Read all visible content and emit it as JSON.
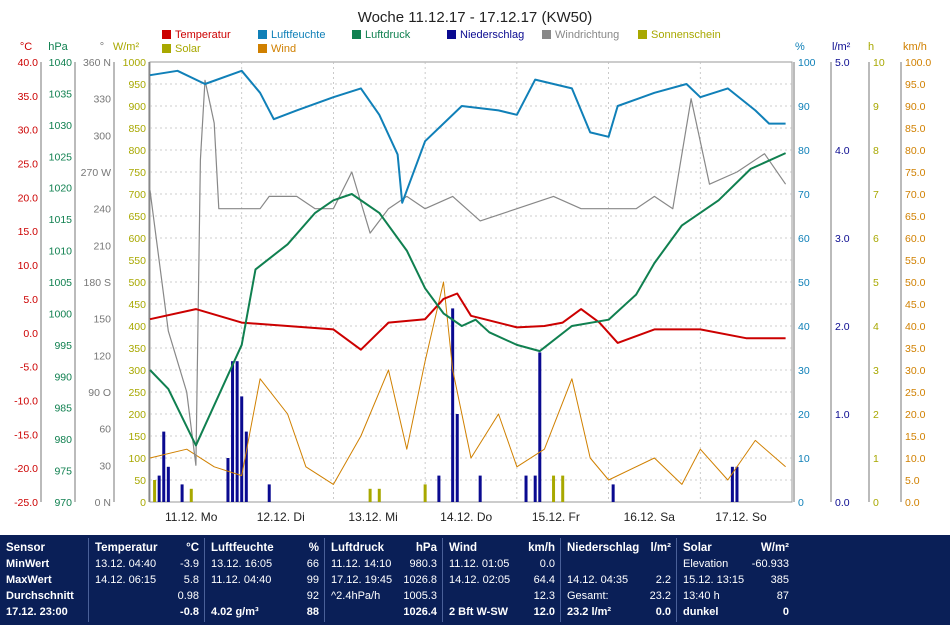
{
  "title": "Woche 11.12.17 - 17.12.17 (KW50)",
  "legend": [
    {
      "label": "Temperatur",
      "color": "#cc0000"
    },
    {
      "label": "Luftfeuchte",
      "color": "#1080b8"
    },
    {
      "label": "Luftdruck",
      "color": "#108050"
    },
    {
      "label": "Niederschlag",
      "color": "#0a0a90"
    },
    {
      "label": "Windrichtung",
      "color": "#888888"
    },
    {
      "label": "Sonnenschein",
      "color": "#a8a800"
    },
    {
      "label": "Solar",
      "color": "#a8a800"
    },
    {
      "label": "Wind",
      "color": "#d08000"
    }
  ],
  "axes": {
    "temp": {
      "unit": "°C",
      "color": "#cc0000",
      "ticks": [
        "40.0",
        "35.0",
        "30.0",
        "25.0",
        "20.0",
        "15.0",
        "10.0",
        "5.0",
        "0.0",
        "-5.0",
        "-10.0",
        "-15.0",
        "-20.0",
        "-25.0"
      ]
    },
    "press": {
      "unit": "hPa",
      "color": "#108050",
      "ticks": [
        "1040",
        "1035",
        "1030",
        "1025",
        "1020",
        "1015",
        "1010",
        "1005",
        "1000",
        "995",
        "990",
        "985",
        "980",
        "975",
        "970"
      ]
    },
    "dir": {
      "unit": "°",
      "color": "#777777",
      "ticks": [
        "360 N",
        "330",
        "300",
        "270 W",
        "240",
        "210",
        "180 S",
        "150",
        "120",
        "90 O",
        "60",
        "30",
        "0 N"
      ]
    },
    "solar": {
      "unit": "W/m²",
      "color": "#a8a800",
      "ticks": [
        "1000",
        "950",
        "900",
        "850",
        "800",
        "750",
        "700",
        "650",
        "600",
        "550",
        "500",
        "450",
        "400",
        "350",
        "300",
        "250",
        "200",
        "150",
        "100",
        "50",
        "0"
      ]
    },
    "hum": {
      "unit": "%",
      "color": "#1080b8",
      "ticks": [
        "100",
        "90",
        "80",
        "70",
        "60",
        "50",
        "40",
        "30",
        "20",
        "10",
        "0"
      ]
    },
    "rain": {
      "unit": "l/m²",
      "color": "#0a0a90",
      "ticks": [
        "5.0",
        "4.0",
        "3.0",
        "2.0",
        "1.0",
        "0.0"
      ]
    },
    "sun": {
      "unit": "h",
      "color": "#a8a800",
      "ticks": [
        "10",
        "9",
        "8",
        "7",
        "6",
        "5",
        "4",
        "3",
        "2",
        "1",
        "0"
      ]
    },
    "wind": {
      "unit": "km/h",
      "color": "#d08000",
      "ticks": [
        "100.0",
        "95.0",
        "90.0",
        "85.0",
        "80.0",
        "75.0",
        "70.0",
        "65.0",
        "60.0",
        "55.0",
        "50.0",
        "45.0",
        "40.0",
        "35.0",
        "30.0",
        "25.0",
        "20.0",
        "15.0",
        "10.0",
        "5.0",
        "0.0"
      ]
    }
  },
  "chart_data": {
    "type": "line",
    "title": "Woche 11.12.17 - 17.12.17 (KW50)",
    "x_unit": "days",
    "categories": [
      "11.12. Mo",
      "12.12. Di",
      "13.12. Mi",
      "14.12. Do",
      "15.12. Fr",
      "16.12. Sa",
      "17.12. So"
    ],
    "series": [
      {
        "name": "Temperatur",
        "axis": "temp",
        "points": [
          [
            0,
            2
          ],
          [
            0.5,
            3.5
          ],
          [
            1,
            1.5
          ],
          [
            1.5,
            1
          ],
          [
            2,
            0.5
          ],
          [
            2.3,
            -2.5
          ],
          [
            2.6,
            1.5
          ],
          [
            3,
            2
          ],
          [
            3.2,
            5
          ],
          [
            3.35,
            5.8
          ],
          [
            3.5,
            2.5
          ],
          [
            4,
            0.8
          ],
          [
            4.3,
            1
          ],
          [
            4.5,
            1.5
          ],
          [
            4.7,
            3.5
          ],
          [
            4.9,
            1.5
          ],
          [
            5.1,
            -1.5
          ],
          [
            5.5,
            0.5
          ],
          [
            6,
            0.5
          ],
          [
            6.5,
            -0.8
          ],
          [
            6.93,
            -0.8
          ]
        ]
      },
      {
        "name": "Luftfeuchte",
        "axis": "hum",
        "points": [
          [
            0,
            97
          ],
          [
            0.3,
            98
          ],
          [
            0.6,
            95
          ],
          [
            1,
            98
          ],
          [
            1.2,
            93
          ],
          [
            1.35,
            87
          ],
          [
            1.6,
            89
          ],
          [
            2,
            92
          ],
          [
            2.3,
            94
          ],
          [
            2.5,
            88
          ],
          [
            2.7,
            79
          ],
          [
            2.75,
            68
          ],
          [
            3,
            82
          ],
          [
            3.4,
            90
          ],
          [
            3.8,
            89
          ],
          [
            4,
            88
          ],
          [
            4.2,
            96
          ],
          [
            4.6,
            94
          ],
          [
            4.8,
            84
          ],
          [
            5,
            83
          ],
          [
            5.1,
            90
          ],
          [
            5.5,
            93
          ],
          [
            5.85,
            95
          ],
          [
            6,
            92
          ],
          [
            6.3,
            94
          ],
          [
            6.6,
            89
          ],
          [
            6.75,
            86
          ],
          [
            6.93,
            86
          ]
        ]
      },
      {
        "name": "Luftdruck",
        "axis": "press",
        "points": [
          [
            0,
            991
          ],
          [
            0.2,
            988
          ],
          [
            0.5,
            979
          ],
          [
            1,
            995
          ],
          [
            1.15,
            1007
          ],
          [
            1.5,
            1011
          ],
          [
            1.8,
            1016
          ],
          [
            2,
            1018
          ],
          [
            2.2,
            1019
          ],
          [
            2.5,
            1016
          ],
          [
            2.8,
            1010
          ],
          [
            3,
            1004
          ],
          [
            3.2,
            1000
          ],
          [
            3.4,
            998
          ],
          [
            3.55,
            999
          ],
          [
            3.7,
            997
          ],
          [
            4,
            995
          ],
          [
            4.25,
            994
          ],
          [
            4.6,
            998
          ],
          [
            5,
            999
          ],
          [
            5.3,
            1003
          ],
          [
            5.5,
            1008
          ],
          [
            5.8,
            1014
          ],
          [
            6.2,
            1018
          ],
          [
            6.55,
            1023
          ],
          [
            6.93,
            1025.5
          ]
        ]
      },
      {
        "name": "Windrichtung",
        "axis": "dir",
        "points": [
          [
            0,
            255
          ],
          [
            0.2,
            140
          ],
          [
            0.4,
            90
          ],
          [
            0.5,
            30
          ],
          [
            0.55,
            280
          ],
          [
            0.6,
            345
          ],
          [
            0.7,
            310
          ],
          [
            0.75,
            240
          ],
          [
            1.2,
            240
          ],
          [
            1.3,
            250
          ],
          [
            1.6,
            250
          ],
          [
            1.8,
            240
          ],
          [
            2,
            240
          ],
          [
            2.2,
            270
          ],
          [
            2.4,
            220
          ],
          [
            2.6,
            240
          ],
          [
            2.8,
            250
          ],
          [
            3,
            240
          ],
          [
            3.3,
            250
          ],
          [
            3.6,
            230
          ],
          [
            4,
            240
          ],
          [
            4.4,
            250
          ],
          [
            4.7,
            240
          ],
          [
            5,
            240
          ],
          [
            5.3,
            240
          ],
          [
            5.5,
            250
          ],
          [
            5.7,
            240
          ],
          [
            5.9,
            330
          ],
          [
            6.1,
            260
          ],
          [
            6.4,
            270
          ],
          [
            6.7,
            285
          ],
          [
            6.93,
            260
          ]
        ]
      },
      {
        "name": "Wind",
        "axis": "wind",
        "points": [
          [
            0,
            10
          ],
          [
            0.4,
            12
          ],
          [
            0.7,
            8
          ],
          [
            1,
            6
          ],
          [
            1.2,
            28
          ],
          [
            1.5,
            20
          ],
          [
            1.7,
            8
          ],
          [
            2,
            4
          ],
          [
            2.3,
            15
          ],
          [
            2.6,
            30
          ],
          [
            2.8,
            12
          ],
          [
            3,
            32
          ],
          [
            3.2,
            50
          ],
          [
            3.3,
            30
          ],
          [
            3.5,
            10
          ],
          [
            3.8,
            20
          ],
          [
            4,
            8
          ],
          [
            4.3,
            12
          ],
          [
            4.6,
            28
          ],
          [
            4.8,
            10
          ],
          [
            5,
            5
          ],
          [
            5.5,
            10
          ],
          [
            5.8,
            4
          ],
          [
            6,
            12
          ],
          [
            6.3,
            5
          ],
          [
            6.6,
            14
          ],
          [
            6.93,
            8
          ]
        ]
      }
    ],
    "bars": [
      {
        "name": "Niederschlag",
        "axis": "rain",
        "points": [
          [
            0.1,
            0.3
          ],
          [
            0.15,
            0.8
          ],
          [
            0.2,
            0.4
          ],
          [
            0.35,
            0.2
          ],
          [
            0.85,
            0.5
          ],
          [
            0.9,
            1.6
          ],
          [
            0.95,
            1.6
          ],
          [
            1.0,
            1.2
          ],
          [
            1.05,
            0.8
          ],
          [
            1.3,
            0.2
          ],
          [
            3.15,
            0.3
          ],
          [
            3.3,
            2.2
          ],
          [
            3.35,
            1.0
          ],
          [
            3.6,
            0.3
          ],
          [
            4.1,
            0.3
          ],
          [
            4.2,
            0.3
          ],
          [
            4.25,
            1.7
          ],
          [
            5.05,
            0.2
          ],
          [
            6.35,
            0.4
          ],
          [
            6.4,
            0.4
          ]
        ]
      },
      {
        "name": "Sonnenschein",
        "axis": "sun",
        "points": [
          [
            0.05,
            0.5
          ],
          [
            0.45,
            0.3
          ],
          [
            2.4,
            0.3
          ],
          [
            2.5,
            0.3
          ],
          [
            3.0,
            0.4
          ],
          [
            4.4,
            0.6
          ],
          [
            4.5,
            0.6
          ]
        ]
      }
    ]
  },
  "table": {
    "sensor": {
      "header": "Sensor",
      "rows": [
        "MinWert",
        "MaxWert",
        "Durchschnitt"
      ],
      "last": "17.12. 23:00"
    },
    "cols": [
      {
        "header": "Temperatur",
        "unit": "°C",
        "rows": [
          [
            "13.12. 04:40",
            "-3.9"
          ],
          [
            "14.12. 06:15",
            "5.8"
          ],
          [
            "",
            "0.98"
          ]
        ],
        "last": [
          "",
          "-0.8"
        ]
      },
      {
        "header": "Luftfeuchte",
        "unit": "%",
        "rows": [
          [
            "13.12. 16:05",
            "66"
          ],
          [
            "11.12. 04:40",
            "99"
          ],
          [
            "",
            "92"
          ]
        ],
        "last": [
          "4.02 g/m³",
          "88"
        ]
      },
      {
        "header": "Luftdruck",
        "unit": "hPa",
        "rows": [
          [
            "11.12. 14:10",
            "980.3"
          ],
          [
            "17.12. 19:45",
            "1026.8"
          ],
          [
            "^2.4hPa/h",
            "1005.3"
          ]
        ],
        "last": [
          "",
          "1026.4"
        ]
      },
      {
        "header": "Wind",
        "unit": "km/h",
        "rows": [
          [
            "11.12. 01:05",
            "0.0"
          ],
          [
            "14.12. 02:05",
            "64.4"
          ],
          [
            "",
            "12.3"
          ]
        ],
        "last": [
          "2 Bft W-SW",
          "12.0"
        ]
      },
      {
        "header": "Niederschlag",
        "unit": "l/m²",
        "rows": [
          [
            "",
            ""
          ],
          [
            "14.12. 04:35",
            "2.2"
          ],
          [
            "Gesamt:",
            "23.2"
          ]
        ],
        "last": [
          "23.2 l/m²",
          "0.0"
        ]
      },
      {
        "header": "Solar",
        "unit": "W/m²",
        "rows": [
          [
            "Elevation",
            "-60.933"
          ],
          [
            "15.12. 13:15",
            "385"
          ],
          [
            "13:40 h",
            "87"
          ]
        ],
        "last": [
          "dunkel",
          "0"
        ]
      }
    ]
  }
}
